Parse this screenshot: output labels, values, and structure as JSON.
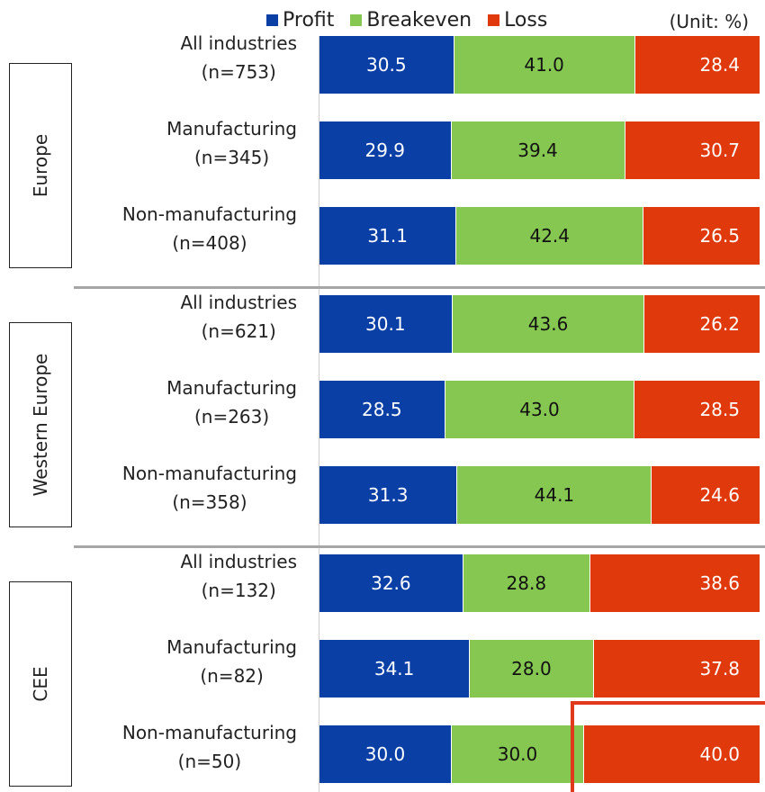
{
  "legend": {
    "items": [
      {
        "label": "Profit",
        "color": "#0a3fa6"
      },
      {
        "label": "Breakeven",
        "color": "#86c752"
      },
      {
        "label": "Loss",
        "color": "#e03a0c"
      }
    ],
    "unit": "(Unit: %)"
  },
  "chart_data": {
    "type": "bar",
    "orientation": "horizontal",
    "stacked": true,
    "percent_stacked": true,
    "series_names": [
      "Profit",
      "Breakeven",
      "Loss"
    ],
    "colors": [
      "#0a3fa6",
      "#86c752",
      "#e03a0c"
    ],
    "groups": [
      {
        "name": "Europe",
        "rows": [
          {
            "label": "All industries",
            "n": "(n=753)",
            "values": [
              30.5,
              41.0,
              28.4
            ],
            "value_labels": [
              "30.5",
              "41.0",
              "28.4"
            ]
          },
          {
            "label": "Manufacturing",
            "n": "(n=345)",
            "values": [
              29.9,
              39.4,
              30.7
            ],
            "value_labels": [
              "29.9",
              "39.4",
              "30.7"
            ]
          },
          {
            "label": "Non-manufacturing",
            "n": "(n=408)",
            "values": [
              31.1,
              42.4,
              26.5
            ],
            "value_labels": [
              "31.1",
              "42.4",
              "26.5"
            ]
          }
        ]
      },
      {
        "name": "Western Europe",
        "rows": [
          {
            "label": "All industries",
            "n": "(n=621)",
            "values": [
              30.1,
              43.6,
              26.2
            ],
            "value_labels": [
              "30.1",
              "43.6",
              "26.2"
            ]
          },
          {
            "label": "Manufacturing",
            "n": "(n=263)",
            "values": [
              28.5,
              43.0,
              28.5
            ],
            "value_labels": [
              "28.5",
              "43.0",
              "28.5"
            ]
          },
          {
            "label": "Non-manufacturing",
            "n": "(n=358)",
            "values": [
              31.3,
              44.1,
              24.6
            ],
            "value_labels": [
              "31.3",
              "44.1",
              "24.6"
            ]
          }
        ]
      },
      {
        "name": "CEE",
        "rows": [
          {
            "label": "All industries",
            "n": "(n=132)",
            "values": [
              32.6,
              28.8,
              38.6
            ],
            "value_labels": [
              "32.6",
              "28.8",
              "38.6"
            ]
          },
          {
            "label": "Manufacturing",
            "n": "(n=82)",
            "values": [
              34.1,
              28.0,
              37.8
            ],
            "value_labels": [
              "34.1",
              "28.0",
              "37.8"
            ]
          },
          {
            "label": "Non-manufacturing",
            "n": "(n=50)",
            "values": [
              30.0,
              30.0,
              40.0
            ],
            "value_labels": [
              "30.0",
              "30.0",
              "40.0"
            ]
          }
        ]
      }
    ],
    "highlighted": {
      "group": "CEE",
      "row": "Non-manufacturing",
      "series": "Loss"
    }
  }
}
